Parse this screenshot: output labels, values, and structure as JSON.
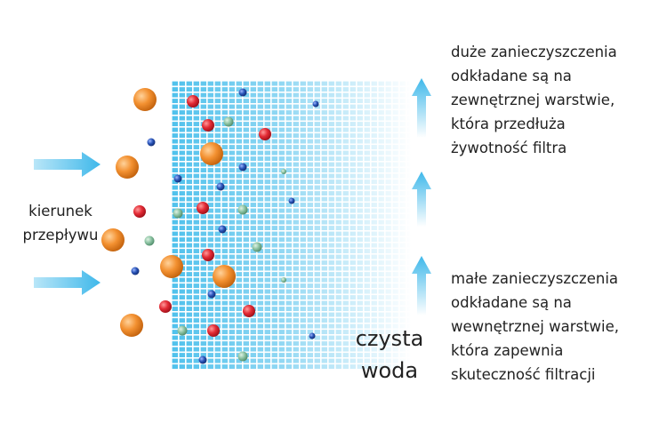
{
  "labels": {
    "flow_direction": [
      "kierunek",
      "przepływu"
    ],
    "clean_water": [
      "czysta",
      "woda"
    ],
    "large_particles": [
      "duże zanieczyszczenia",
      "odkładane są na",
      "zewnętrznej warstwie,",
      "która przedłuża",
      "żywotność filtra"
    ],
    "small_particles": [
      "małe zanieczyszczenia",
      "odkładane są na",
      "wewnętrznej warstwie,",
      "która zapewnia",
      "skuteczność filtracji"
    ]
  }
}
